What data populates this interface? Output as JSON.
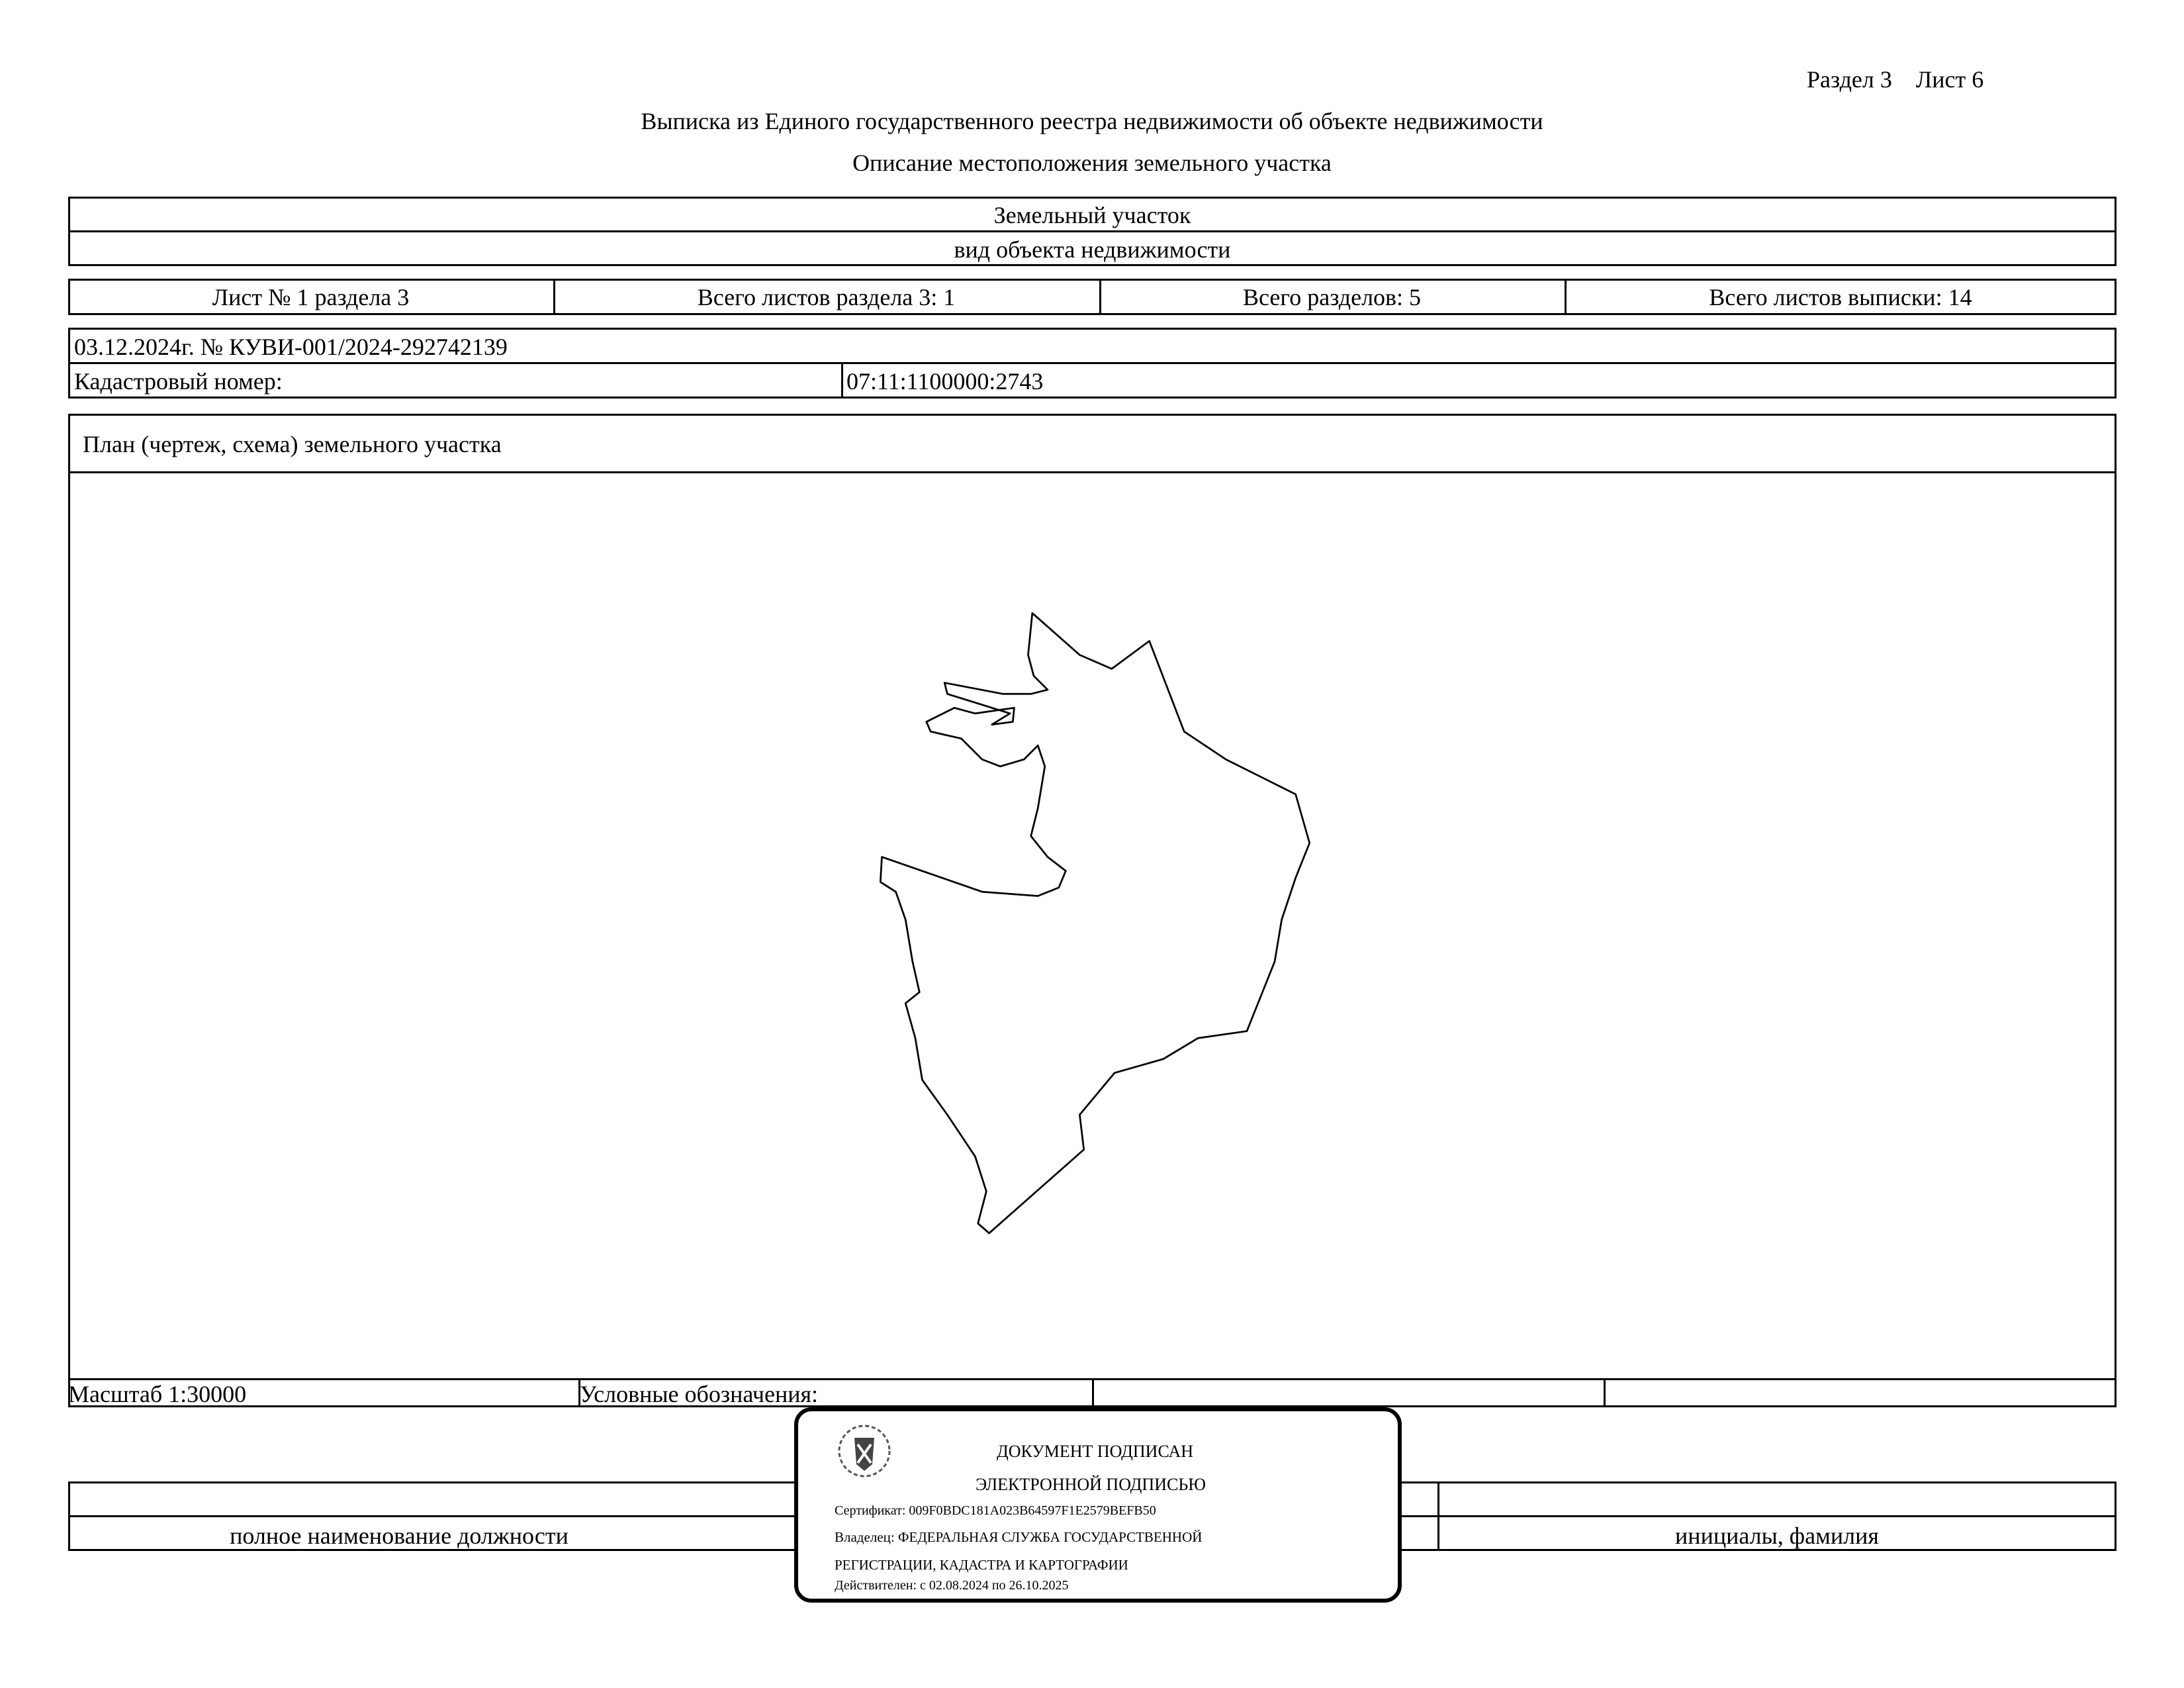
{
  "header": {
    "section_sheet": "Раздел 3    Лист 6",
    "title": "Выписка из Единого государственного реестра недвижимости об объекте недвижимости",
    "subtitle": "Описание местоположения земельного участка"
  },
  "object": {
    "name": "Земельный участок",
    "caption": "вид объекта недвижимости"
  },
  "sheets": [
    "Лист № 1 раздела 3",
    "Всего листов раздела 3: 1",
    "Всего разделов: 5",
    "Всего листов выписки: 14"
  ],
  "record": {
    "date_number": "03.12.2024г. № КУВИ-001/2024-292742139",
    "cadastral_label": "Кадастровый номер:",
    "cadastral_number": "07:11:1100000:2743"
  },
  "plan": {
    "title": "План (чертеж, схема) земельного участка",
    "scale": "Масштаб 1:30000",
    "legend": "Условные обозначения:"
  },
  "signature": {
    "position_caption": "полное наименование должности",
    "name_caption": "инициалы, фамилия"
  },
  "stamp": {
    "line1": "ДОКУМЕНТ ПОДПИСАН",
    "line2": "ЭЛЕКТРОННОЙ ПОДПИСЬЮ",
    "certificate": "Сертификат: 009F0BDC181A023B64597F1E2579BEFB50",
    "owner1": "Владелец: ФЕДЕРАЛЬНАЯ СЛУЖБА ГОСУДАРСТВЕННОЙ",
    "owner2": "РЕГИСТРАЦИИ, КАДАСТРА И КАРТОГРАФИИ",
    "validity": "Действителен: с 02.08.2024 по 26.10.2025"
  }
}
